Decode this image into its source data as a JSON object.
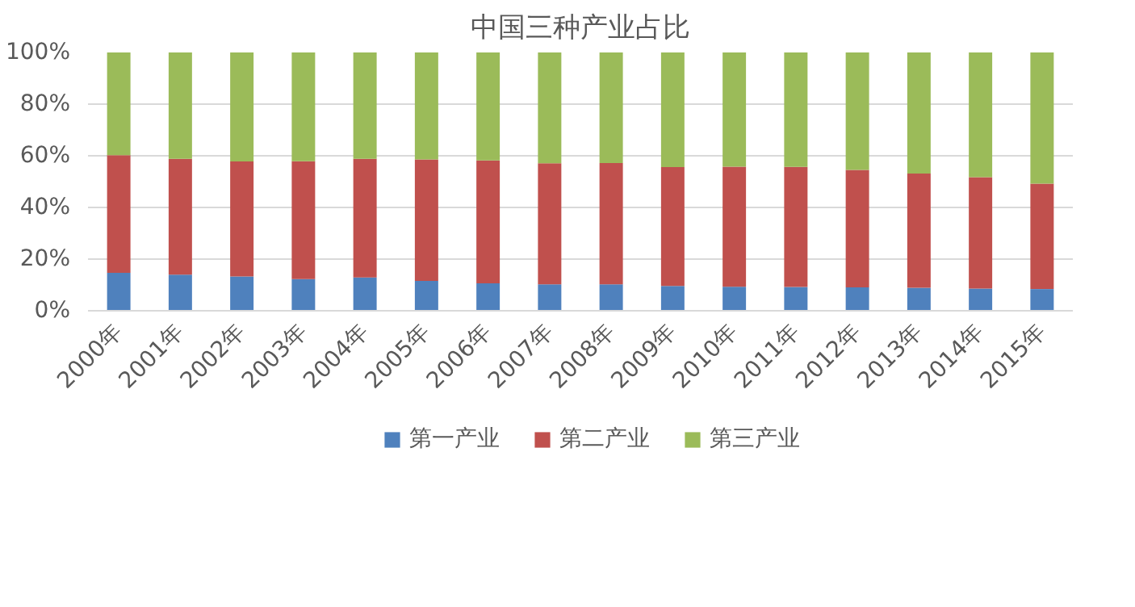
{
  "chart_data": {
    "type": "bar",
    "title": "中国三种产业占比",
    "stacked": true,
    "categories": [
      "2000年",
      "2001年",
      "2002年",
      "2003年",
      "2004年",
      "2005年",
      "2006年",
      "2007年",
      "2008年",
      "2009年",
      "2010年",
      "2011年",
      "2012年",
      "2013年",
      "2014年",
      "2015年"
    ],
    "series": [
      {
        "name": "第一产业",
        "color": "#4f81bd",
        "values": [
          14.7,
          14.0,
          13.3,
          12.3,
          12.9,
          11.6,
          10.6,
          10.2,
          10.2,
          9.6,
          9.3,
          9.2,
          9.1,
          8.9,
          8.6,
          8.4
        ]
      },
      {
        "name": "第二产业",
        "color": "#c0504d",
        "values": [
          45.5,
          44.8,
          44.5,
          45.6,
          45.9,
          47.0,
          47.6,
          46.9,
          47.0,
          46.0,
          46.5,
          46.5,
          45.4,
          44.2,
          43.1,
          40.8
        ]
      },
      {
        "name": "第三产业",
        "color": "#9bbb59",
        "values": [
          39.8,
          41.2,
          42.2,
          42.1,
          41.2,
          41.4,
          41.8,
          42.9,
          42.8,
          44.4,
          44.2,
          44.3,
          45.5,
          46.9,
          48.3,
          50.8
        ]
      }
    ],
    "ylim": [
      0,
      100
    ],
    "yticks": [
      {
        "value": 0,
        "label": "0%"
      },
      {
        "value": 20,
        "label": "20%"
      },
      {
        "value": 40,
        "label": "40%"
      },
      {
        "value": 60,
        "label": "60%"
      },
      {
        "value": 80,
        "label": "80%"
      },
      {
        "value": 100,
        "label": "100%"
      }
    ],
    "grid": "y",
    "legend": "bottom"
  }
}
